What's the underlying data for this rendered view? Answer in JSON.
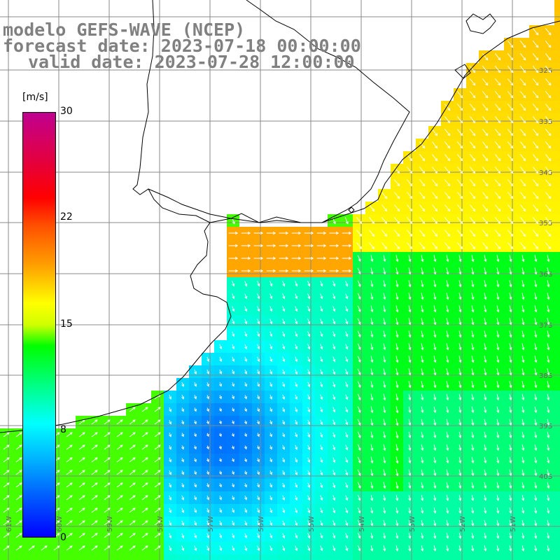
{
  "header": {
    "line1": "modelo GEFS-WAVE (NCEP)",
    "line2": "forecast date: 2023-07-18 00:00:00",
    "line3": "valid date: 2023-07-28 12:00:00"
  },
  "colorbar": {
    "unit": "[m/s]",
    "min": 0,
    "max": 30,
    "ticks": [
      "0",
      "8",
      "15",
      "22",
      "30"
    ]
  },
  "map": {
    "lat_labels": [
      "32S",
      "33S",
      "34S",
      "35S",
      "36S",
      "37S",
      "38S",
      "39S",
      "40S"
    ],
    "lon_labels": [
      "61W",
      "60W",
      "59W",
      "58W",
      "57W",
      "56W",
      "55W",
      "54W",
      "53W",
      "52W",
      "51W"
    ],
    "colors": {
      "land": "#ffffff",
      "coast": "#000000",
      "grid": "#888888",
      "arrow": "#ffffff"
    },
    "wind_speed_field": "ocean cells coloured by wind speed (m/s), arrows show wind direction"
  }
}
